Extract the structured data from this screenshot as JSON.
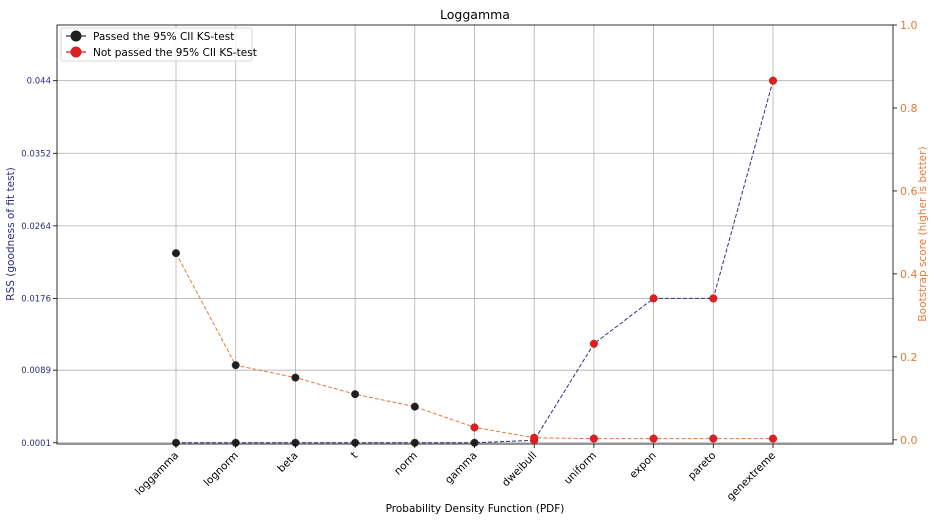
{
  "chart_data": {
    "type": "line",
    "title": "Loggamma",
    "xlabel": "Probability Density Function (PDF)",
    "ylabel_left": "RSS (goodness of fit test)",
    "ylabel_right": "Bootstrap score (higher is better)",
    "categories": [
      "loggamma",
      "lognorm",
      "beta",
      "t",
      "norm",
      "gamma",
      "dweibull",
      "uniform",
      "expon",
      "pareto",
      "genextreme"
    ],
    "left_axis": {
      "ylim": [
        -5e-05,
        0.05075
      ],
      "ticks": [
        0.0001,
        0.0089,
        0.0176,
        0.0264,
        0.0352,
        0.044
      ],
      "tick_labels": [
        "0.0001",
        "0.0089",
        "0.0176",
        "0.0264",
        "0.0352",
        "0.044"
      ]
    },
    "right_axis": {
      "ylim": [
        -0.01,
        1.0
      ],
      "ticks": [
        0.0,
        0.2,
        0.4,
        0.6,
        0.8,
        1.0
      ],
      "tick_labels": [
        "0.0",
        "0.2",
        "0.4",
        "0.6",
        "0.8",
        "1.0"
      ]
    },
    "grid": true,
    "series": [
      {
        "axis": "left",
        "values": [
          0.0001,
          0.0001,
          0.0001,
          0.0001,
          0.0001,
          0.0001,
          0.0004,
          0.0121,
          0.0176,
          0.0176,
          0.044
        ],
        "status": [
          "pass",
          "pass",
          "pass",
          "pass",
          "pass",
          "pass",
          "fail",
          "fail",
          "fail",
          "fail",
          "fail"
        ]
      },
      {
        "axis": "right",
        "values": [
          0.45,
          0.18,
          0.15,
          0.11,
          0.08,
          0.03,
          0.005,
          0.003,
          0.003,
          0.003,
          0.003
        ],
        "status": [
          "pass",
          "pass",
          "pass",
          "pass",
          "pass",
          "fail",
          "fail",
          "fail",
          "fail",
          "fail",
          "fail"
        ]
      }
    ],
    "legend": {
      "placement": "top-left",
      "entries": [
        "Passed the 95% CII KS-test",
        "Not passed the 95% CII KS-test"
      ]
    },
    "colors": {
      "left_axis": "#2e2e7a",
      "right_axis": "#e07b39",
      "rss_line": "#2e2e7a",
      "bootstrap_line": "#e07b39",
      "pass_marker": "#1f1f1f",
      "fail_marker": "#e02020",
      "grid": "#b0b0b0"
    }
  }
}
